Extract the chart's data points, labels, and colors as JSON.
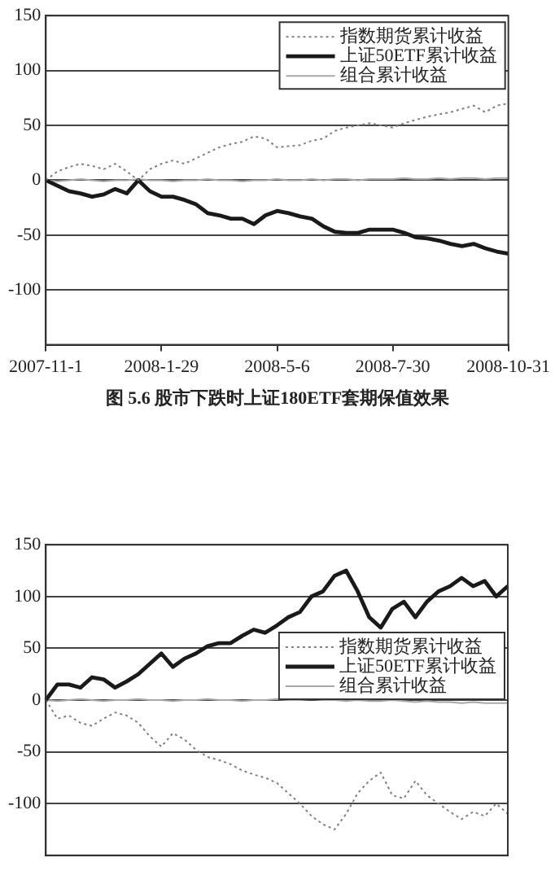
{
  "chart_data": [
    {
      "type": "line",
      "annotations": [
        "图 5.6 股市下跌时上证180ETF套期保值效果"
      ],
      "categories": [
        "2007-11-1",
        null,
        null,
        null,
        null,
        null,
        null,
        null,
        null,
        null,
        "2008-1-29",
        null,
        null,
        null,
        null,
        null,
        null,
        null,
        null,
        null,
        "2008-5-6",
        null,
        null,
        null,
        null,
        null,
        null,
        null,
        null,
        null,
        "2008-7-30",
        null,
        null,
        null,
        null,
        null,
        null,
        null,
        null,
        null,
        "2008-10-31"
      ],
      "series": [
        {
          "name": "指数期货累计收益",
          "color": "#808080",
          "line_style": "dotted",
          "values": [
            0,
            8,
            12,
            15,
            13,
            10,
            15,
            8,
            0,
            10,
            15,
            18,
            15,
            20,
            25,
            30,
            33,
            35,
            40,
            38,
            30,
            31,
            32,
            36,
            38,
            45,
            48,
            50,
            52,
            50,
            48,
            52,
            55,
            58,
            60,
            62,
            65,
            68,
            62,
            68,
            70
          ]
        },
        {
          "name": "上证50ETF累计收益",
          "color": "#1a1a1a",
          "line_style": "solid",
          "values": [
            0,
            -5,
            -10,
            -12,
            -15,
            -13,
            -8,
            -12,
            0,
            -10,
            -15,
            -15,
            -18,
            -22,
            -30,
            -32,
            -35,
            -35,
            -40,
            -32,
            -28,
            -30,
            -33,
            -35,
            -42,
            -47,
            -48,
            -48,
            -45,
            -45,
            -45,
            -48,
            -52,
            -53,
            -55,
            -58,
            -60,
            -58,
            -62,
            -65,
            -67
          ]
        },
        {
          "name": "组合累计收益",
          "color": "#a8a8a8",
          "line_style": "solid",
          "values": [
            0,
            -1,
            0,
            1,
            0,
            -1,
            0,
            0,
            1,
            0,
            0,
            -1,
            0,
            0,
            1,
            0,
            0,
            -1,
            0,
            0,
            1,
            0,
            0,
            1,
            0,
            1,
            1,
            0,
            1,
            1,
            1,
            2,
            1,
            1,
            2,
            1,
            2,
            2,
            1,
            2,
            2
          ]
        }
      ],
      "ylim": [
        -150,
        150
      ],
      "yticks": [
        -100,
        -50,
        0,
        50,
        100,
        150
      ],
      "grid": "y",
      "legend": "top right"
    },
    {
      "type": "line",
      "categories": [
        null,
        null,
        null,
        null,
        null,
        null,
        null,
        null,
        null,
        null,
        null,
        null,
        null,
        null,
        null,
        null,
        null,
        null,
        null,
        null,
        null,
        null,
        null,
        null,
        null,
        null,
        null,
        null,
        null,
        null,
        null,
        null,
        null,
        null,
        null,
        null,
        null,
        null,
        null,
        null,
        null
      ],
      "series": [
        {
          "name": "指数期货累计收益",
          "color": "#808080",
          "line_style": "dotted",
          "values": [
            0,
            -18,
            -15,
            -22,
            -25,
            -18,
            -12,
            -15,
            -22,
            -35,
            -45,
            -32,
            -38,
            -48,
            -55,
            -58,
            -62,
            -68,
            -72,
            -75,
            -80,
            -90,
            -100,
            -112,
            -120,
            -125,
            -110,
            -90,
            -78,
            -70,
            -92,
            -95,
            -78,
            -92,
            -100,
            -108,
            -115,
            -108,
            -112,
            -100,
            -110
          ]
        },
        {
          "name": "上证50ETF累计收益",
          "color": "#1a1a1a",
          "line_style": "solid",
          "values": [
            0,
            15,
            15,
            12,
            22,
            20,
            12,
            18,
            25,
            35,
            45,
            32,
            40,
            45,
            52,
            55,
            55,
            62,
            68,
            65,
            72,
            80,
            85,
            100,
            105,
            120,
            125,
            105,
            80,
            70,
            88,
            95,
            80,
            95,
            105,
            110,
            118,
            110,
            115,
            100,
            110
          ]
        },
        {
          "name": "组合累计收益",
          "color": "#a8a8a8",
          "line_style": "solid",
          "values": [
            0,
            -1,
            0,
            1,
            0,
            -1,
            0,
            0,
            1,
            0,
            0,
            -1,
            0,
            0,
            1,
            0,
            0,
            -1,
            0,
            0,
            1,
            0,
            0,
            1,
            0,
            0,
            -1,
            0,
            -1,
            -1,
            0,
            -1,
            -2,
            -1,
            -2,
            -2,
            -3,
            -2,
            -3,
            -3,
            -3
          ]
        }
      ],
      "ylim": [
        -150,
        150
      ],
      "yticks": [
        -100,
        -50,
        0,
        50,
        100,
        150
      ],
      "grid": "y",
      "legend": "right",
      "tick_labels": "y"
    }
  ]
}
